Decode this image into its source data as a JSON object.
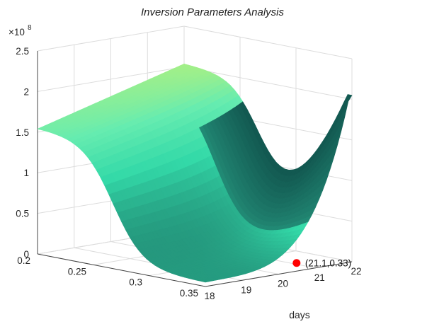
{
  "chart_data": {
    "type": "surface",
    "title": "Inversion Parameters Analysis",
    "xlabel": "days",
    "ylabel": "",
    "zlabel": "",
    "z_exponent_label": "×10",
    "z_exponent_power": "8",
    "xlim": [
      18,
      22
    ],
    "ylim": [
      0.2,
      0.35
    ],
    "zlim": [
      0,
      2.5
    ],
    "x_ticks": [
      "18",
      "19",
      "20",
      "21",
      "22"
    ],
    "y_ticks": [
      "0.2",
      "0.25",
      "0.3",
      "0.35"
    ],
    "z_ticks": [
      "0",
      "0.5",
      "1",
      "1.5",
      "2",
      "2.5"
    ],
    "grid": true,
    "colormap": [
      "#0d4a46",
      "#1f7f6d",
      "#33d9a8",
      "#66ecb0",
      "#b5f07c",
      "#6aaa3c"
    ],
    "surface_z_at_x18_ymin": 1.55,
    "surface_z_at_x18_ymax": 0.05,
    "surface_z_at_x22_ymin": 2.05,
    "surface_z_at_x22_ymax": 0.08,
    "marker": {
      "x": 21.1,
      "y": 0.33,
      "z": 0,
      "label": "(21.1,0.33)",
      "color": "#ff0000"
    }
  }
}
